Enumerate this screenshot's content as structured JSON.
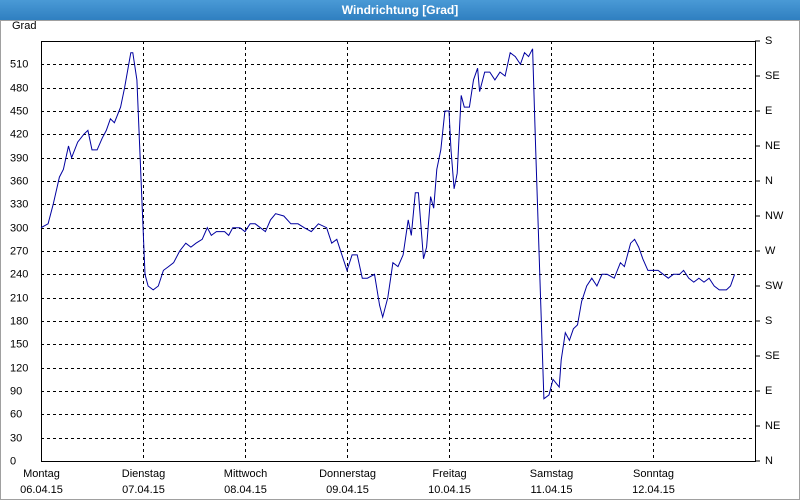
{
  "chart_data": {
    "type": "line",
    "title": "Windrichtung [Grad]",
    "y_label": "Grad",
    "xlim": [
      0,
      7
    ],
    "xticks": [
      {
        "value": 0,
        "label": [
          "Montag",
          "06.04.15"
        ]
      },
      {
        "value": 1,
        "label": [
          "Dienstag",
          "07.04.15"
        ]
      },
      {
        "value": 2,
        "label": [
          "Mittwoch",
          "08.04.15"
        ]
      },
      {
        "value": 3,
        "label": [
          "Donnerstag",
          "09.04.15"
        ]
      },
      {
        "value": 4,
        "label": [
          "Freitag",
          "10.04.15"
        ]
      },
      {
        "value": 5,
        "label": [
          "Samstag",
          "11.04.15"
        ]
      },
      {
        "value": 6,
        "label": [
          "Sonntag",
          "12.04.15"
        ]
      }
    ],
    "ylim": [
      0,
      540
    ],
    "yticks": [
      0,
      30,
      60,
      90,
      120,
      150,
      180,
      210,
      240,
      270,
      300,
      330,
      360,
      390,
      420,
      450,
      480,
      510
    ],
    "y2lim": [
      0,
      540
    ],
    "y2ticks": [
      {
        "value": 0,
        "label": "N"
      },
      {
        "value": 45,
        "label": "NE"
      },
      {
        "value": 90,
        "label": "E"
      },
      {
        "value": 135,
        "label": "SE"
      },
      {
        "value": 180,
        "label": "S"
      },
      {
        "value": 225,
        "label": "SW"
      },
      {
        "value": 270,
        "label": "W"
      },
      {
        "value": 315,
        "label": "NW"
      },
      {
        "value": 360,
        "label": "N"
      },
      {
        "value": 405,
        "label": "NE"
      },
      {
        "value": 450,
        "label": "E"
      },
      {
        "value": 495,
        "label": "SE"
      },
      {
        "value": 540,
        "label": "S"
      }
    ],
    "grid": true,
    "color": "#0000a0",
    "x": [
      0,
      0.07,
      0.12,
      0.18,
      0.22,
      0.27,
      0.3,
      0.36,
      0.42,
      0.46,
      0.5,
      0.55,
      0.6,
      0.64,
      0.68,
      0.72,
      0.78,
      0.82,
      0.88,
      0.9,
      0.94,
      1.02,
      1.05,
      1.1,
      1.15,
      1.2,
      1.25,
      1.3,
      1.36,
      1.42,
      1.47,
      1.52,
      1.58,
      1.63,
      1.67,
      1.72,
      1.8,
      1.84,
      1.88,
      1.95,
      2.0,
      2.05,
      2.1,
      2.15,
      2.2,
      2.25,
      2.3,
      2.38,
      2.45,
      2.52,
      2.58,
      2.65,
      2.72,
      2.8,
      2.85,
      2.9,
      2.95,
      3.0,
      3.05,
      3.1,
      3.15,
      3.2,
      3.27,
      3.32,
      3.35,
      3.4,
      3.45,
      3.5,
      3.55,
      3.6,
      3.63,
      3.67,
      3.7,
      3.75,
      3.78,
      3.82,
      3.85,
      3.88,
      3.92,
      3.96,
      4.0,
      4.02,
      4.05,
      4.08,
      4.12,
      4.15,
      4.2,
      4.24,
      4.28,
      4.3,
      4.35,
      4.4,
      4.45,
      4.5,
      4.55,
      4.6,
      4.65,
      4.7,
      4.74,
      4.78,
      4.82,
      4.85,
      4.9,
      4.93,
      4.98,
      5.02,
      5.08,
      5.1,
      5.14,
      5.18,
      5.22,
      5.26,
      5.3,
      5.35,
      5.4,
      5.45,
      5.5,
      5.55,
      5.62,
      5.68,
      5.72,
      5.78,
      5.82,
      5.86,
      5.9,
      5.95,
      6.0,
      6.05,
      6.1,
      6.15,
      6.2,
      6.26,
      6.3,
      6.35,
      6.4,
      6.45,
      6.5,
      6.55,
      6.6,
      6.65,
      6.72,
      6.76,
      6.8
    ],
    "values": [
      300,
      305,
      330,
      365,
      375,
      405,
      390,
      410,
      420,
      425,
      400,
      400,
      415,
      425,
      440,
      435,
      455,
      480,
      525,
      525,
      490,
      240,
      225,
      220,
      225,
      245,
      250,
      255,
      270,
      280,
      275,
      280,
      285,
      300,
      290,
      295,
      295,
      290,
      300,
      300,
      295,
      305,
      305,
      300,
      295,
      310,
      318,
      315,
      305,
      305,
      300,
      295,
      305,
      300,
      280,
      285,
      265,
      245,
      265,
      265,
      235,
      235,
      240,
      200,
      185,
      210,
      255,
      250,
      265,
      310,
      290,
      345,
      345,
      260,
      275,
      340,
      325,
      375,
      400,
      450,
      450,
      400,
      350,
      370,
      470,
      455,
      455,
      490,
      505,
      475,
      500,
      500,
      490,
      500,
      495,
      525,
      520,
      510,
      525,
      520,
      530,
      400,
      200,
      80,
      85,
      105,
      95,
      130,
      165,
      155,
      170,
      175,
      205,
      225,
      235,
      225,
      240,
      240,
      235,
      255,
      250,
      280,
      285,
      275,
      260,
      245,
      245,
      245,
      240,
      235,
      240,
      240,
      245,
      235,
      230,
      235,
      230,
      235,
      225,
      220,
      220,
      225,
      240
    ]
  }
}
